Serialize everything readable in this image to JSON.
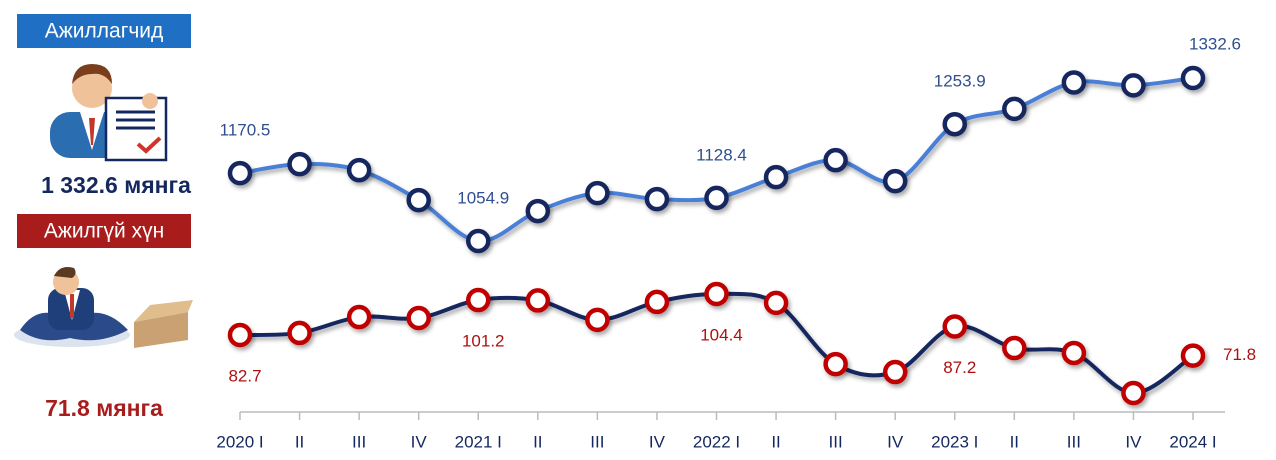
{
  "chart_data": {
    "type": "line",
    "categories": [
      "2020 I",
      "II",
      "III",
      "IV",
      "2021 I",
      "II",
      "III",
      "IV",
      "2022 I",
      "II",
      "III",
      "IV",
      "2023 I",
      "II",
      "III",
      "IV",
      "2024 I"
    ],
    "series": [
      {
        "name": "Ажиллагчид",
        "total_label": "1 332.6 мянга",
        "color": "#4a7fd6",
        "marker_color": "#14285e",
        "name_box_color": "#1f6fc5",
        "values": [
          1170.5,
          1185.8,
          1175.6,
          1124.6,
          1054.9,
          1105.9,
          1136.5,
          1126.3,
          1128.4,
          1163.7,
          1192.6,
          1156.9,
          1253.9,
          1280.0,
          1325.0,
          1320.0,
          1332.6
        ],
        "value_labels": [
          "1170.5",
          null,
          null,
          null,
          "1054.9",
          null,
          null,
          null,
          "1128.4",
          null,
          null,
          null,
          "1253.9",
          null,
          null,
          null,
          "1332.6"
        ]
      },
      {
        "name": "Ажилгүй хүн",
        "total_label": "71.8 мянга",
        "color": "#14285e",
        "marker_color": "#c00000",
        "name_box_color": "#a81c1c",
        "values": [
          82.7,
          83.8,
          92.2,
          91.7,
          101.2,
          101.0,
          90.7,
          100.2,
          104.4,
          99.7,
          67.3,
          63.1,
          87.2,
          75.8,
          73.2,
          52.0,
          71.8
        ],
        "value_labels": [
          "82.7",
          null,
          null,
          null,
          "101.2",
          null,
          null,
          null,
          "104.4",
          null,
          null,
          null,
          "87.2",
          null,
          null,
          null,
          "71.8"
        ]
      }
    ]
  }
}
